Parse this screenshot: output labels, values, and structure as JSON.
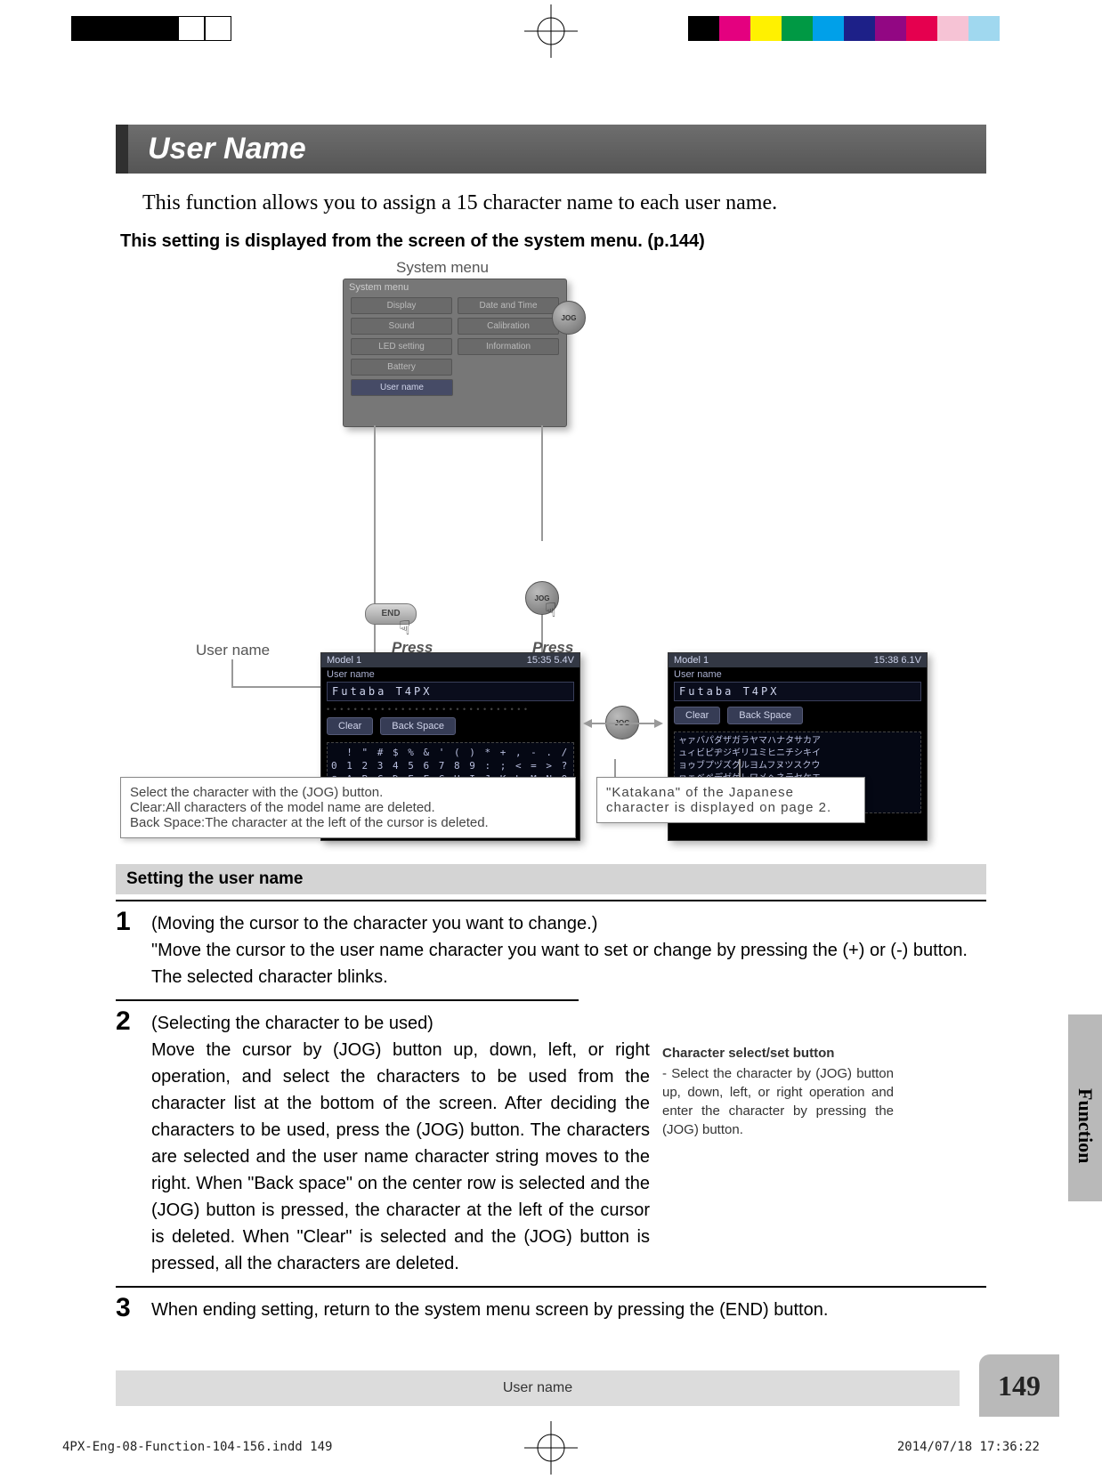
{
  "colorbar": [
    "#000000",
    "#e4007f",
    "#fff100",
    "#009944",
    "#00a0e9",
    "#1d2088",
    "#920783",
    "#e5004f",
    "#f6c3d5",
    "#a0d8ef",
    "#ffffff"
  ],
  "title": "User Name",
  "lead": "This function allows you to assign a 15 character name to each user name.",
  "bold_note": "This setting is displayed from the screen of the system menu. (p.144)",
  "diagram": {
    "sys_label": "System menu",
    "usr_label": "User name",
    "press": "Press",
    "sys_header": "System menu",
    "sys_rows": [
      [
        "Display",
        "Date and Time"
      ],
      [
        "Sound",
        "Calibration"
      ],
      [
        "LED setting",
        "Information"
      ],
      [
        "Battery",
        ""
      ]
    ],
    "sys_highlight": "User name",
    "panel_left": {
      "model": "Model 1",
      "status": "15:35 5.4V",
      "section": "User name",
      "value": "Futaba  T4PX",
      "clear": "Clear",
      "back": "Back Space",
      "grid": "  ! \" # $ % & ' ( ) * + , - . /\n0 1 2 3 4 5 6 7 8 9 : ; < = > ?\n@ A B C D E F G H I J K L M N O\nP Q R S T U V W X Y Z [ \\ ] ^ _\n` a b c d e f g h i j k l m n o\np q r s t u v w x y z { | } ~"
    },
    "panel_right": {
      "model": "Model 1",
      "status": "15:38 6.1V",
      "section": "User name",
      "value": "Futaba  T4PX",
      "clear": "Clear",
      "back": "Back Space",
      "grid": "ャァバパダザガラヤマハナタサカア\nュィビピヂジギリユミヒニチシキイ\nョゥブプヅズグルヨムフヌツスクウ\nヮェベペデゼゲレワメヘネテセケエ\nッォボポドゾゴロンモホノトソコオ\nヲー ・"
    },
    "info_left": {
      "l1": "Select the character with the (JOG) button.",
      "l2": "Clear:All characters of the model name are deleted.",
      "l3": "Back Space:The character at the left of the cursor is deleted."
    },
    "info_right": "\"Katakana\" of the Japanese character is displayed on page 2.",
    "end": "END",
    "jog": "JOG"
  },
  "section_header": "Setting the user name",
  "steps": {
    "s1": {
      "n": "1",
      "t": "(Moving the cursor to the character you want to change.)",
      "b": "\"Move the cursor to the user name character you want to set or change by pressing the (+) or (-) button. The selected character blinks."
    },
    "s2": {
      "n": "2",
      "t": "(Selecting the character to be used)",
      "b": "Move the cursor by (JOG) button up, down, left, or right operation, and select the characters to be used from the character list at the bottom of the screen. After deciding the characters to be used, press the (JOG) button. The characters are selected and the user name character string moves to the right. When \"Back space\" on the center row is selected and the (JOG) button is pressed, the character at the left of the cursor is deleted. When \"Clear\" is selected and the (JOG) button is pressed, all the characters are deleted."
    },
    "s3": {
      "n": "3",
      "b": "When ending setting, return to the system menu screen by pressing the (END) button."
    }
  },
  "side_note": {
    "hd": "Character select/set button",
    "bd": "- Select the character by (JOG) button up, down, left, or right operation and enter the character by pressing the (JOG) button."
  },
  "side_tab": "Function",
  "footer": "User name",
  "page_num": "149",
  "imprint_left": "4PX-Eng-08-Function-104-156.indd   149",
  "imprint_right": "2014/07/18   17:36:22"
}
